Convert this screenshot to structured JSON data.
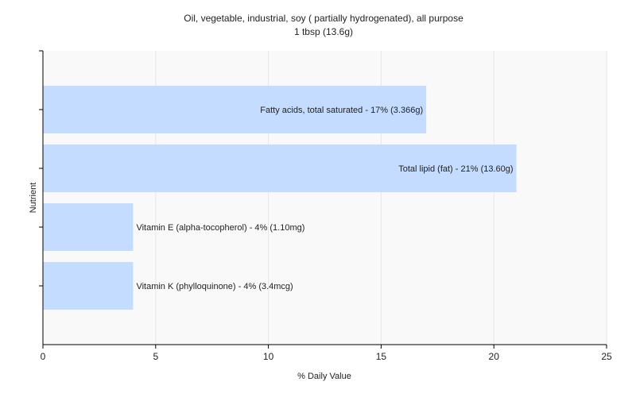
{
  "chart_data": {
    "type": "bar",
    "orientation": "horizontal",
    "title": "Oil, vegetable, industrial, soy ( partially hydrogenated), all purpose",
    "subtitle": "1 tbsp (13.6g)",
    "xlabel": "% Daily Value",
    "ylabel": "Nutrient",
    "xlim": [
      0,
      25
    ],
    "xticks": [
      0,
      5,
      10,
      15,
      20,
      25
    ],
    "grid": true,
    "legend": "none",
    "bar_color": "#c4dcff",
    "categories": [
      "Fatty acids, total saturated",
      "Total lipid (fat)",
      "Vitamin E (alpha-tocopherol)",
      "Vitamin K (phylloquinone)"
    ],
    "values": [
      17,
      21,
      4,
      4
    ],
    "labels": [
      "Fatty acids, total saturated - 17% (3.366g)",
      "Total lipid (fat) - 21% (13.60g)",
      "Vitamin E (alpha-tocopherol) - 4% (1.10mg)",
      "Vitamin K (phylloquinone) - 4% (3.4mcg)"
    ]
  }
}
